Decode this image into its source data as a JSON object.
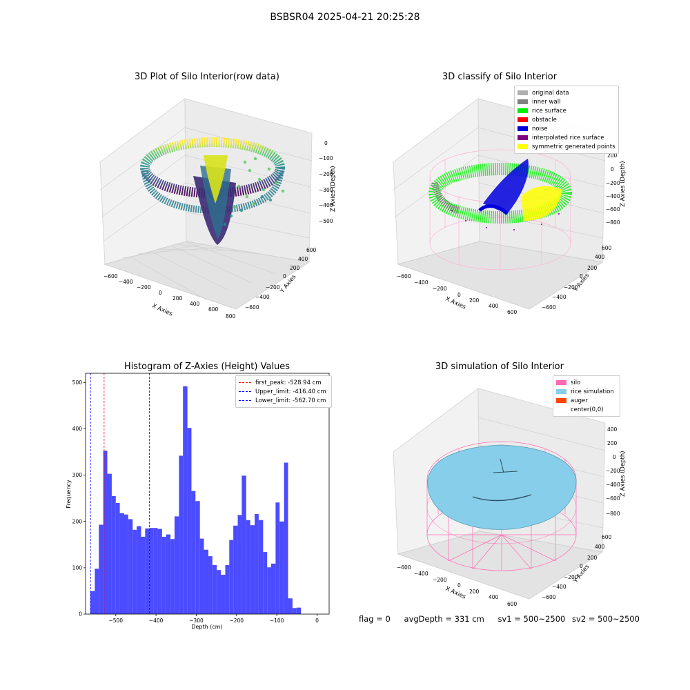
{
  "suptitle": "BSBSR04 2025-04-21 20:25:28",
  "footer": {
    "flag": "flag = 0",
    "avg_depth": "avgDepth = 331 cm",
    "sv1": "sv1 = 500~2500",
    "sv2": "sv2 = 500~2500"
  },
  "chart_data": [
    {
      "type": "scatter",
      "projection": "3d",
      "title": "3D Plot of Silo Interior(row data)",
      "xlabel": "X Axies",
      "ylabel": "Y Axies",
      "zlabel": "Z Axies (Depth)",
      "xticks": [
        "−600",
        "−400",
        "−200",
        "0",
        "200",
        "400",
        "600",
        "800"
      ],
      "yticks": [
        "−600",
        "−400",
        "−200",
        "0",
        "200",
        "400",
        "600"
      ],
      "zticks": [
        "0",
        "−100",
        "−200",
        "−300",
        "−400",
        "−500"
      ],
      "xlim": [
        -650,
        800
      ],
      "ylim": [
        -650,
        650
      ],
      "zlim": [
        -570,
        0
      ],
      "colormap": "viridis"
    },
    {
      "type": "scatter",
      "projection": "3d",
      "title": "3D classify of Silo Interior",
      "xlabel": "X Axies",
      "ylabel": "Y Axies",
      "zlabel": "Z Axies (Depth)",
      "xticks": [
        "−600",
        "−400",
        "−200",
        "0",
        "200",
        "400",
        "600"
      ],
      "yticks": [
        "−600",
        "−400",
        "−200",
        "0",
        "200",
        "400",
        "600"
      ],
      "zticks": [
        "200",
        "0",
        "−200",
        "−400",
        "−600",
        "−800"
      ],
      "legend_position": "top-right",
      "legend": [
        {
          "label": "original data",
          "color": "#b0b0b0"
        },
        {
          "label": "inner wall",
          "color": "#808080"
        },
        {
          "label": "rice surface",
          "color": "#00ee00"
        },
        {
          "label": "obstacle",
          "color": "#ff0000"
        },
        {
          "label": "noise",
          "color": "#0000dd"
        },
        {
          "label": "interpolated rice surface",
          "color": "#800080"
        },
        {
          "label": "symmetric generated points",
          "color": "#ffff00"
        }
      ]
    },
    {
      "type": "bar",
      "subtype": "histogram",
      "title": "Histogram of Z-Axies (Height) Values",
      "xlabel": "Depth (cm)",
      "ylabel": "Frequency",
      "xlim": [
        -575,
        30
      ],
      "ylim": [
        0,
        520
      ],
      "xticks": [
        -500,
        -400,
        -300,
        -200,
        -100,
        0
      ],
      "xtick_labels": [
        "−500",
        "−400",
        "−300",
        "−200",
        "−100",
        "0"
      ],
      "yticks": [
        0,
        100,
        200,
        300,
        400,
        500
      ],
      "bar_color": "#4b4bff",
      "bins": [
        {
          "x0": -563,
          "x1": -552,
          "v": 50
        },
        {
          "x0": -552,
          "x1": -542,
          "v": 98
        },
        {
          "x0": -542,
          "x1": -531,
          "v": 193
        },
        {
          "x0": -531,
          "x1": -521,
          "v": 353
        },
        {
          "x0": -521,
          "x1": -510,
          "v": 303
        },
        {
          "x0": -510,
          "x1": -500,
          "v": 255
        },
        {
          "x0": -500,
          "x1": -490,
          "v": 240
        },
        {
          "x0": -490,
          "x1": -479,
          "v": 218
        },
        {
          "x0": -479,
          "x1": -469,
          "v": 215
        },
        {
          "x0": -469,
          "x1": -458,
          "v": 205
        },
        {
          "x0": -458,
          "x1": -448,
          "v": 182
        },
        {
          "x0": -448,
          "x1": -437,
          "v": 190
        },
        {
          "x0": -437,
          "x1": -427,
          "v": 167
        },
        {
          "x0": -427,
          "x1": -416,
          "v": 185
        },
        {
          "x0": -416,
          "x1": -406,
          "v": 186
        },
        {
          "x0": -406,
          "x1": -396,
          "v": 186
        },
        {
          "x0": -396,
          "x1": -385,
          "v": 184
        },
        {
          "x0": -385,
          "x1": -375,
          "v": 167
        },
        {
          "x0": -375,
          "x1": -364,
          "v": 172
        },
        {
          "x0": -364,
          "x1": -354,
          "v": 162
        },
        {
          "x0": -354,
          "x1": -343,
          "v": 211
        },
        {
          "x0": -343,
          "x1": -333,
          "v": 342
        },
        {
          "x0": -333,
          "x1": -322,
          "v": 492
        },
        {
          "x0": -322,
          "x1": -312,
          "v": 402
        },
        {
          "x0": -312,
          "x1": -302,
          "v": 266
        },
        {
          "x0": -302,
          "x1": -291,
          "v": 244
        },
        {
          "x0": -291,
          "x1": -281,
          "v": 163
        },
        {
          "x0": -281,
          "x1": -270,
          "v": 139
        },
        {
          "x0": -270,
          "x1": -260,
          "v": 125
        },
        {
          "x0": -260,
          "x1": -249,
          "v": 106
        },
        {
          "x0": -249,
          "x1": -239,
          "v": 95
        },
        {
          "x0": -239,
          "x1": -228,
          "v": 85
        },
        {
          "x0": -228,
          "x1": -218,
          "v": 106
        },
        {
          "x0": -218,
          "x1": -208,
          "v": 160
        },
        {
          "x0": -208,
          "x1": -197,
          "v": 191
        },
        {
          "x0": -197,
          "x1": -187,
          "v": 214
        },
        {
          "x0": -187,
          "x1": -176,
          "v": 299
        },
        {
          "x0": -176,
          "x1": -166,
          "v": 203
        },
        {
          "x0": -166,
          "x1": -155,
          "v": 192
        },
        {
          "x0": -155,
          "x1": -145,
          "v": 216
        },
        {
          "x0": -145,
          "x1": -134,
          "v": 203
        },
        {
          "x0": -134,
          "x1": -124,
          "v": 134
        },
        {
          "x0": -124,
          "x1": -114,
          "v": 101
        },
        {
          "x0": -114,
          "x1": -103,
          "v": 109
        },
        {
          "x0": -103,
          "x1": -93,
          "v": 241
        },
        {
          "x0": -93,
          "x1": -82,
          "v": 200
        },
        {
          "x0": -82,
          "x1": -72,
          "v": 327
        },
        {
          "x0": -72,
          "x1": -61,
          "v": 34
        },
        {
          "x0": -61,
          "x1": -51,
          "v": 13
        },
        {
          "x0": -51,
          "x1": -40,
          "v": 14
        }
      ],
      "vlines": [
        {
          "label": "first_peak: -528.94 cm",
          "x": -528.94,
          "color": "#ff0000"
        },
        {
          "label": "Upper_limit: -416.40 cm",
          "x": -416.4,
          "color": "#0000ff"
        },
        {
          "label": "Lower_limit: -562.70 cm",
          "x": -562.7,
          "color": "#0000ff"
        }
      ],
      "legend_position": "top-right"
    },
    {
      "type": "surface",
      "projection": "3d",
      "title": "3D simulation of Silo Interior",
      "xlabel": "X Axies",
      "ylabel": "Y Axies",
      "zlabel": "Z Axies (Depth)",
      "xticks": [
        "−600",
        "−400",
        "−200",
        "0",
        "200",
        "400",
        "600"
      ],
      "yticks": [
        "−600",
        "−400",
        "−200",
        "0",
        "200",
        "400",
        "600"
      ],
      "zticks": [
        "400",
        "200",
        "0",
        "−200",
        "−400",
        "−600",
        "−800"
      ],
      "legend_position": "top-right",
      "legend": [
        {
          "label": "silo",
          "color": "#ff69b4"
        },
        {
          "label": "rice simulation",
          "color": "#87ceeb"
        },
        {
          "label": "auger",
          "color": "#ff4500"
        },
        {
          "label": "center(0,0)",
          "color": "none"
        }
      ]
    }
  ]
}
